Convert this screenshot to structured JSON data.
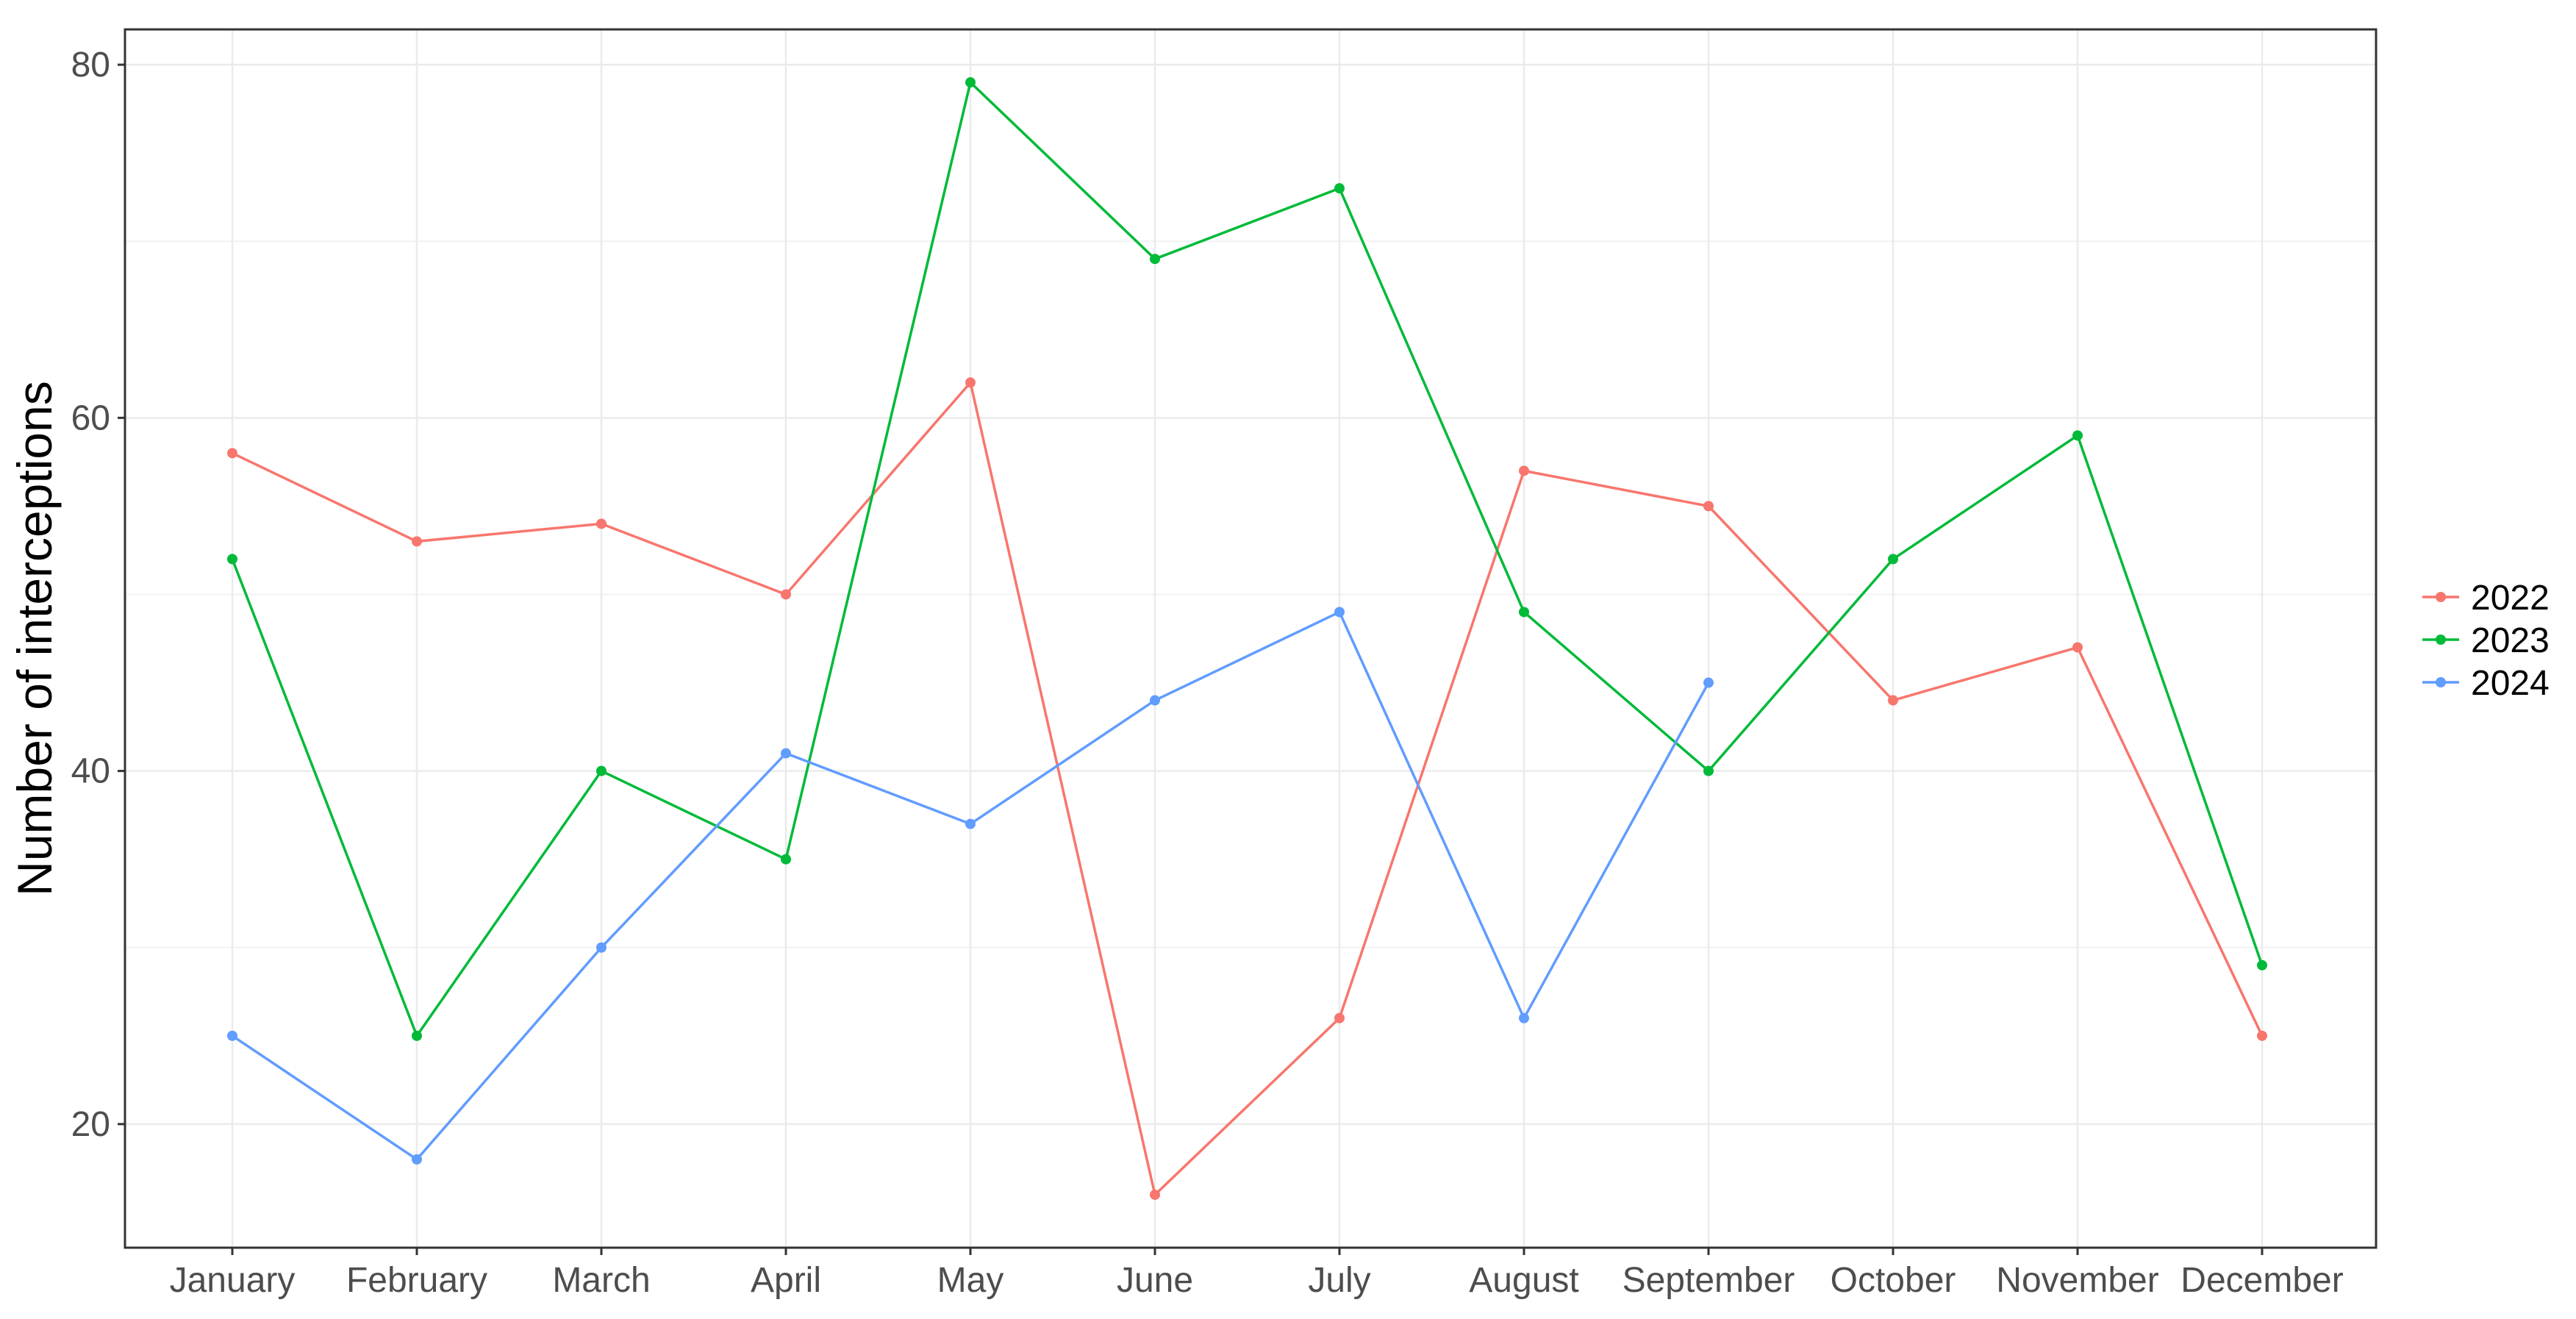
{
  "chart_data": {
    "type": "line",
    "title": "",
    "xlabel": "",
    "ylabel": "Number of interceptions",
    "categories": [
      "January",
      "February",
      "March",
      "April",
      "May",
      "June",
      "July",
      "August",
      "September",
      "October",
      "November",
      "December"
    ],
    "y_ticks": [
      20,
      40,
      60,
      80
    ],
    "ylim": [
      13,
      82
    ],
    "grid": true,
    "legend_position": "right",
    "series": [
      {
        "name": "2022",
        "color": "#F8766D",
        "values": [
          58,
          53,
          54,
          50,
          62,
          16,
          26,
          57,
          55,
          44,
          47,
          25
        ]
      },
      {
        "name": "2023",
        "color": "#00BA38",
        "values": [
          52,
          25,
          40,
          35,
          79,
          69,
          73,
          49,
          40,
          52,
          59,
          29
        ]
      },
      {
        "name": "2024",
        "color": "#619CFF",
        "values": [
          25,
          18,
          30,
          41,
          37,
          44,
          49,
          26,
          45,
          null,
          null,
          null
        ]
      }
    ]
  }
}
